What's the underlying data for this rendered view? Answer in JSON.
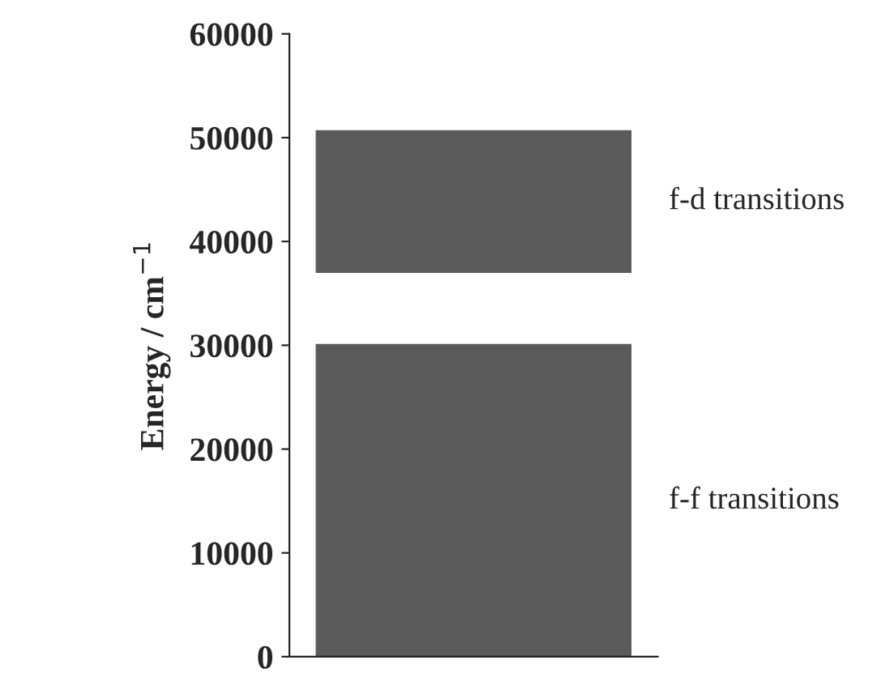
{
  "chart_data": {
    "type": "bar",
    "ylabel": "Energy / cm$^{−1}$",
    "categories": [
      null
    ],
    "series": [
      {
        "color": "#5a5a5a",
        "values": [
          30000
        ],
        "base": [
          0
        ]
      },
      {
        "color": "#5a5a5a",
        "values": [
          13500
        ],
        "base": [
          37100
        ]
      }
    ],
    "annotations": [
      "f-f transitions",
      "f-d transitions"
    ],
    "ylim": [
      0,
      60000
    ],
    "yticks": [
      0,
      10000,
      20000,
      30000,
      40000,
      50000,
      60000
    ],
    "grid": false,
    "legend": false
  }
}
